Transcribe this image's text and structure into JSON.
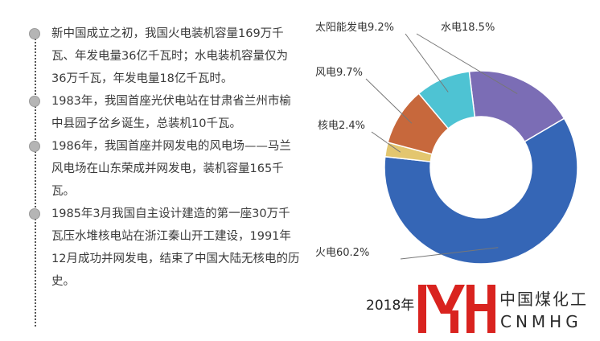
{
  "timeline": [
    "新中国成立之初，我国火电装机容量169万千瓦、年发电量36亿千瓦时；水电装机容量仅为36万千瓦，年发电量18亿千瓦时。",
    "1983年，我国首座光伏电站在甘肃省兰州市榆中县园子岔乡诞生，总装机10千瓦。",
    "1986年，我国首座并网发电的风电场——马兰风电场在山东荣成并网发电，装机容量165千瓦。",
    "1985年3月我国自主设计建造的第一座30万千瓦压水堆核电站在浙江秦山开工建设，1991年12月成功并网发电，结束了中国大陆无核电的历史。"
  ],
  "chart_data": {
    "type": "pie",
    "donut": true,
    "title": "2018年",
    "slices": [
      {
        "label": "水电18.5%",
        "value": 18.5,
        "color": "#7b6db5"
      },
      {
        "label": "火电60.2%",
        "value": 60.2,
        "color": "#3566b6"
      },
      {
        "label": "核电2.4%",
        "value": 2.4,
        "color": "#e3c66f"
      },
      {
        "label": "风电9.7%",
        "value": 9.7,
        "color": "#c7683c"
      },
      {
        "label": "太阳能发电9.2%",
        "value": 9.2,
        "color": "#4ec3d3"
      }
    ]
  },
  "logo": {
    "cn": "中国煤化工",
    "en": "CNMHG",
    "color": "#d9231f"
  }
}
